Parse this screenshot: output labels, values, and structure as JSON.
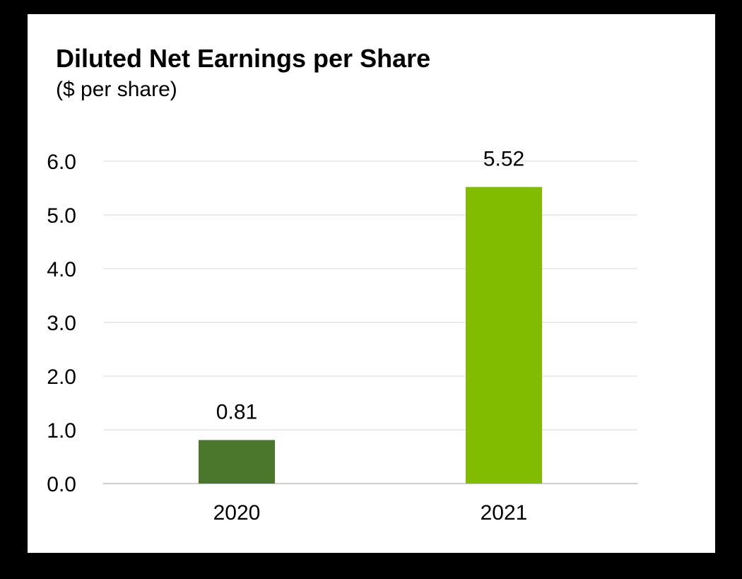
{
  "chart_data": {
    "type": "bar",
    "title": "Diluted Net Earnings per Share",
    "subtitle": "($ per share)",
    "xlabel": "",
    "ylabel": "",
    "categories": [
      "2020",
      "2021"
    ],
    "values": [
      0.81,
      5.52
    ],
    "data_labels": [
      "0.81",
      "5.52"
    ],
    "bar_colors": [
      "#4a772c",
      "#82bc00"
    ],
    "ylim": [
      0,
      6
    ],
    "yticks": [
      0,
      1,
      2,
      3,
      4,
      5,
      6
    ],
    "ytick_labels": [
      "0.0",
      "1.0",
      "2.0",
      "3.0",
      "4.0",
      "5.0",
      "6.0"
    ],
    "grid": true,
    "legend": "none"
  },
  "colors": {
    "background": "#000000",
    "panel": "#ffffff",
    "gridline": "#d9d9d9",
    "axis": "#bfbfbf"
  }
}
